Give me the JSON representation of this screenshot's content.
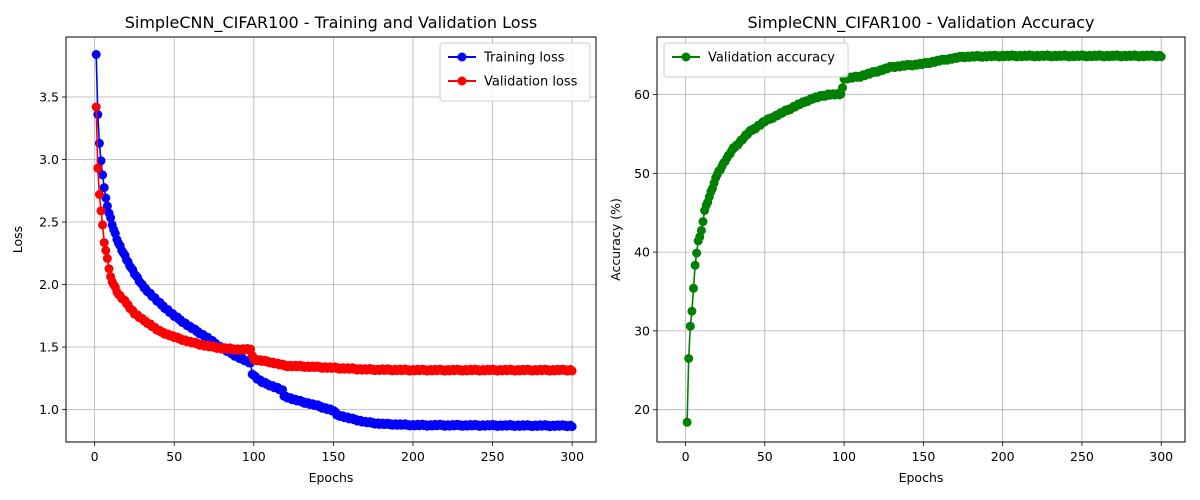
{
  "chart_data": [
    {
      "type": "line",
      "title": "SimpleCNN_CIFAR100 - Training and Validation Loss",
      "xlabel": "Epochs",
      "ylabel": "Loss",
      "xlim": [
        -18,
        315
      ],
      "ylim": [
        0.74,
        3.98
      ],
      "xticks": [
        "0",
        "50",
        "100",
        "150",
        "200",
        "250",
        "300"
      ],
      "yticks": [
        "1.0",
        "1.5",
        "2.0",
        "2.5",
        "3.0",
        "3.5"
      ],
      "grid": true,
      "legend_position": "top-right",
      "series": [
        {
          "name": "Training loss",
          "color": "#0000ff",
          "anchors": [
            [
              1,
              3.84
            ],
            [
              2,
              3.36
            ],
            [
              3,
              3.13
            ],
            [
              4,
              2.99
            ],
            [
              5,
              2.87
            ],
            [
              6,
              2.78
            ],
            [
              7,
              2.69
            ],
            [
              8,
              2.62
            ],
            [
              10,
              2.53
            ],
            [
              12,
              2.44
            ],
            [
              15,
              2.33
            ],
            [
              20,
              2.2
            ],
            [
              25,
              2.09
            ],
            [
              30,
              1.99
            ],
            [
              40,
              1.86
            ],
            [
              50,
              1.75
            ],
            [
              60,
              1.66
            ],
            [
              70,
              1.58
            ],
            [
              80,
              1.49
            ],
            [
              90,
              1.42
            ],
            [
              98,
              1.37
            ],
            [
              99,
              1.29
            ],
            [
              101,
              1.26
            ],
            [
              105,
              1.22
            ],
            [
              115,
              1.17
            ],
            [
              118,
              1.15
            ],
            [
              119,
              1.11
            ],
            [
              125,
              1.08
            ],
            [
              140,
              1.03
            ],
            [
              150,
              0.99
            ],
            [
              152,
              0.96
            ],
            [
              160,
              0.93
            ],
            [
              170,
              0.9
            ],
            [
              180,
              0.885
            ],
            [
              200,
              0.875
            ],
            [
              300,
              0.87
            ]
          ]
        },
        {
          "name": "Validation loss",
          "color": "#ff0000",
          "anchors": [
            [
              1,
              3.42
            ],
            [
              2,
              2.93
            ],
            [
              3,
              2.72
            ],
            [
              4,
              2.59
            ],
            [
              5,
              2.47
            ],
            [
              6,
              2.34
            ],
            [
              8,
              2.2
            ],
            [
              10,
              2.06
            ],
            [
              12,
              2.0
            ],
            [
              15,
              1.92
            ],
            [
              20,
              1.85
            ],
            [
              25,
              1.77
            ],
            [
              30,
              1.72
            ],
            [
              35,
              1.68
            ],
            [
              40,
              1.63
            ],
            [
              50,
              1.58
            ],
            [
              60,
              1.54
            ],
            [
              70,
              1.51
            ],
            [
              80,
              1.49
            ],
            [
              90,
              1.48
            ],
            [
              98,
              1.48
            ],
            [
              100,
              1.4
            ],
            [
              110,
              1.38
            ],
            [
              120,
              1.35
            ],
            [
              140,
              1.34
            ],
            [
              155,
              1.33
            ],
            [
              170,
              1.32
            ],
            [
              200,
              1.315
            ],
            [
              300,
              1.315
            ]
          ]
        }
      ]
    },
    {
      "type": "line",
      "title": "SimpleCNN_CIFAR100 - Validation Accuracy",
      "xlabel": "Epochs",
      "ylabel": "Accuracy (%)",
      "xlim": [
        -18,
        315
      ],
      "ylim": [
        15.9,
        67.3
      ],
      "xticks": [
        "0",
        "50",
        "100",
        "150",
        "200",
        "250",
        "300"
      ],
      "yticks": [
        "20",
        "30",
        "40",
        "50",
        "60"
      ],
      "grid": true,
      "legend_position": "top-left",
      "series": [
        {
          "name": "Validation accuracy",
          "color": "#008000",
          "anchors": [
            [
              1,
              18.4
            ],
            [
              2,
              26.5
            ],
            [
              3,
              30.6
            ],
            [
              4,
              32.5
            ],
            [
              5,
              35.3
            ],
            [
              6,
              38.4
            ],
            [
              8,
              41.3
            ],
            [
              10,
              42.7
            ],
            [
              12,
              45.3
            ],
            [
              15,
              47.0
            ],
            [
              20,
              49.9
            ],
            [
              25,
              51.6
            ],
            [
              30,
              53.1
            ],
            [
              40,
              55.2
            ],
            [
              50,
              56.6
            ],
            [
              60,
              57.6
            ],
            [
              70,
              58.6
            ],
            [
              80,
              59.5
            ],
            [
              90,
              60.0
            ],
            [
              98,
              60.0
            ],
            [
              100,
              62.0
            ],
            [
              110,
              62.3
            ],
            [
              120,
              62.9
            ],
            [
              130,
              63.5
            ],
            [
              150,
              63.9
            ],
            [
              160,
              64.3
            ],
            [
              175,
              64.8
            ],
            [
              200,
              64.9
            ],
            [
              300,
              64.9
            ]
          ]
        }
      ]
    }
  ]
}
